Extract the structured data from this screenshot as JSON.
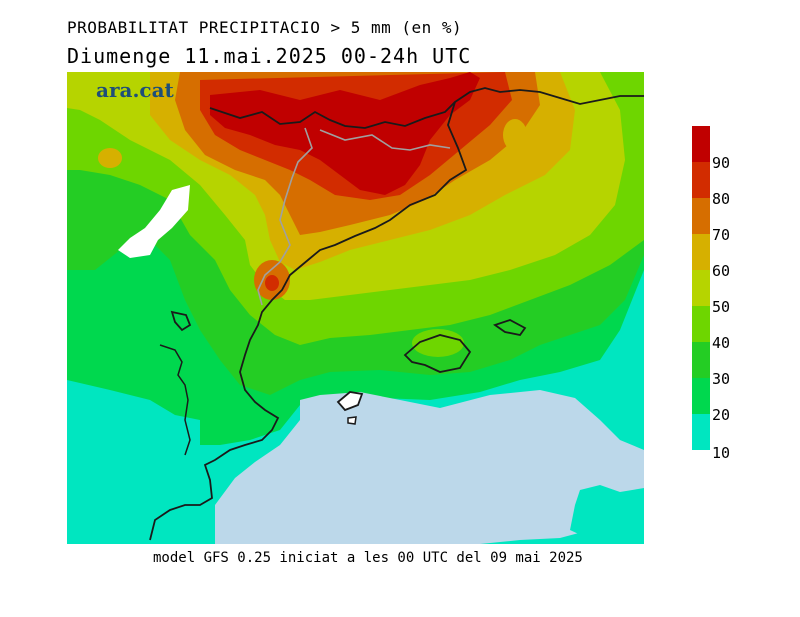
{
  "title": "PROBABILITAT PRECIPITACIO > 5 mm (en %)",
  "subtitle": "Diumenge  11.mai.2025 00-24h UTC",
  "footer": "model GFS 0.25 iniciat a les 00 UTC del 09 mai 2025",
  "logo": "ara.cat",
  "legend": {
    "labels": [
      "90",
      "80",
      "70",
      "60",
      "50",
      "40",
      "30",
      "20",
      "10"
    ],
    "colors": [
      "#c00000",
      "#d22c00",
      "#d66e00",
      "#d6b000",
      "#b6d400",
      "#6ed600",
      "#24cd24",
      "#00d84e",
      "#00e6c0"
    ]
  },
  "colors": {
    "sea": "#bcd8ea",
    "coast": "#1a1a1a",
    "border": "#a0a0a0"
  }
}
